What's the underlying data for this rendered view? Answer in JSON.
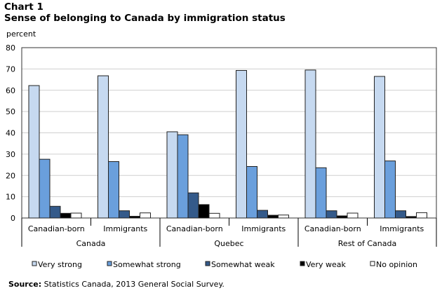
{
  "chart_data": {
    "type": "bar",
    "title_line1": "Chart 1",
    "title": "Sense of belonging to Canada by immigration status",
    "ylabel": "percent",
    "ylim": [
      0,
      80
    ],
    "yticks": [
      0,
      10,
      20,
      30,
      40,
      50,
      60,
      70,
      80
    ],
    "grid": true,
    "legend_position": "bottom",
    "groups": [
      {
        "label": "Canada",
        "categories": [
          "Canadian-born",
          "Immigrants"
        ]
      },
      {
        "label": "Quebec",
        "categories": [
          "Canadian-born",
          "Immigrants"
        ]
      },
      {
        "label": "Rest of Canada",
        "categories": [
          "Canadian-born",
          "Immigrants"
        ]
      }
    ],
    "series": [
      {
        "name": "Very strong",
        "color": "#c6d9f0",
        "values": [
          62.2,
          66.8,
          40.5,
          69.3,
          69.5,
          66.5
        ]
      },
      {
        "name": "Somewhat strong",
        "color": "#6a9fdc",
        "values": [
          27.6,
          26.5,
          39.1,
          24.2,
          23.6,
          26.8
        ]
      },
      {
        "name": "Somewhat weak",
        "color": "#345a8a",
        "values": [
          5.5,
          3.4,
          11.8,
          3.6,
          3.4,
          3.4
        ]
      },
      {
        "name": "Very weak",
        "color": "#000000",
        "values": [
          2.2,
          0.8,
          6.3,
          1.3,
          1.0,
          0.7
        ]
      },
      {
        "name": "No opinion",
        "color": "#ffffff",
        "values": [
          2.3,
          2.4,
          2.2,
          1.4,
          2.3,
          2.5
        ]
      }
    ]
  },
  "source_label": "Source:",
  "source_text": " Statistics Canada, 2013 General Social Survey."
}
